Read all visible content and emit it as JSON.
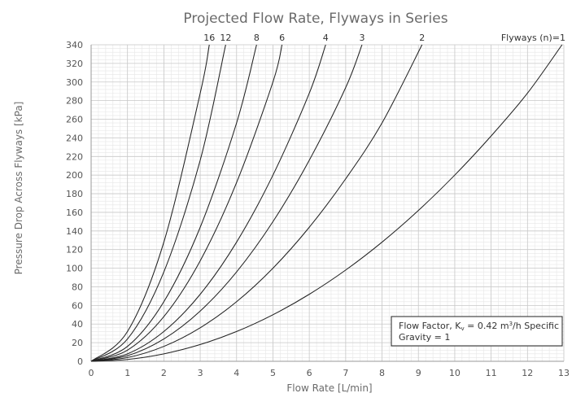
{
  "chart_data": {
    "type": "line",
    "title": "Projected Flow Rate, Flyways in Series",
    "xlabel": "Flow Rate [L/min]",
    "ylabel": "Pressure Drop Across Flyways [kPa]",
    "xlim": [
      0,
      13
    ],
    "ylim": [
      0,
      340
    ],
    "x_ticks": [
      "0",
      "1",
      "2",
      "3",
      "4",
      "5",
      "6",
      "7",
      "8",
      "9",
      "10",
      "11",
      "12",
      "13"
    ],
    "y_ticks": [
      "0",
      "20",
      "40",
      "60",
      "80",
      "100",
      "120",
      "140",
      "160",
      "180",
      "200",
      "220",
      "240",
      "260",
      "280",
      "300",
      "320",
      "340"
    ],
    "grid": true,
    "series": [
      {
        "name": "Flyways (n)=1",
        "label_text": "Flyways (n)=1",
        "x": [
          0,
          1,
          2,
          3,
          4,
          5,
          6,
          7,
          8,
          9,
          10,
          11,
          12,
          12.95
        ],
        "y": [
          0,
          2,
          8,
          18,
          32,
          50,
          72,
          98,
          128,
          162,
          200,
          242,
          288,
          340
        ]
      },
      {
        "name": "2",
        "label_text": "2",
        "x": [
          0,
          1,
          2,
          3,
          4,
          5,
          6,
          7,
          8,
          9.1
        ],
        "y": [
          0,
          4,
          16,
          36,
          64,
          100,
          144,
          196,
          256,
          340
        ]
      },
      {
        "name": "3",
        "label_text": "3",
        "x": [
          0,
          1,
          2,
          3,
          4,
          5,
          6,
          7,
          7.45
        ],
        "y": [
          0,
          6,
          24,
          54,
          96,
          150,
          216,
          294,
          340
        ]
      },
      {
        "name": "4",
        "label_text": "4",
        "x": [
          0,
          1,
          2,
          3,
          4,
          5,
          6,
          6.45
        ],
        "y": [
          0,
          8,
          32,
          72,
          128,
          200,
          288,
          340
        ]
      },
      {
        "name": "6",
        "label_text": "6",
        "x": [
          0,
          1,
          2,
          3,
          4,
          5,
          5.25
        ],
        "y": [
          0,
          12,
          48,
          108,
          192,
          300,
          340
        ]
      },
      {
        "name": "8",
        "label_text": "8",
        "x": [
          0,
          1,
          2,
          3,
          4,
          4.55
        ],
        "y": [
          0,
          16,
          64,
          144,
          256,
          340
        ]
      },
      {
        "name": "12",
        "label_text": "12",
        "x": [
          0,
          1,
          2,
          3,
          3.7
        ],
        "y": [
          0,
          24,
          96,
          216,
          340
        ]
      },
      {
        "name": "16",
        "label_text": "16",
        "x": [
          0,
          1,
          2,
          3,
          3.25
        ],
        "y": [
          0,
          32,
          128,
          288,
          340
        ]
      }
    ],
    "annotation": {
      "line1_pre": "Flow Factor, K",
      "line1_sub": "v",
      "line1_mid": " = 0.42 m",
      "line1_sup": "3",
      "line1_post": "/h Specific",
      "line2": "Gravity = 1"
    }
  }
}
